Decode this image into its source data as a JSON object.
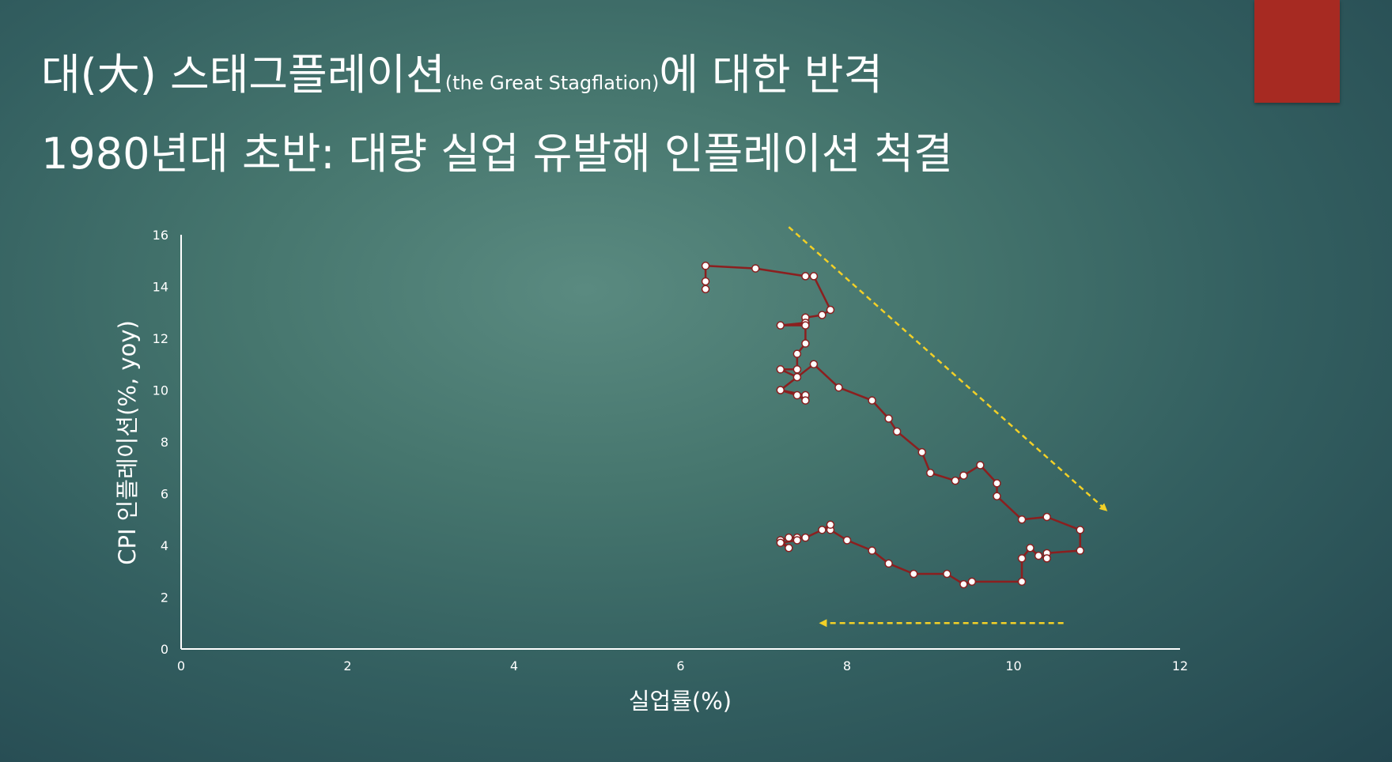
{
  "slide": {
    "title_main": "대(大) 스태그플레이션",
    "title_small": "(the Great Stagflation)",
    "title_end": "에 대한 반격",
    "subtitle": "1980년대 초반: 대량 실업 유발해 인플레이션 척결",
    "accent_color": "#a72a22"
  },
  "chart_data": {
    "type": "scatter",
    "xlabel": "실업률(%)",
    "ylabel": "CPI 인플레이션(%, yoy)",
    "xlim": [
      0,
      12
    ],
    "ylim": [
      0,
      16
    ],
    "x_ticks": [
      "0",
      "2",
      "4",
      "6",
      "8",
      "10",
      "12"
    ],
    "y_ticks": [
      "0",
      "2",
      "4",
      "6",
      "8",
      "10",
      "12",
      "14",
      "16"
    ],
    "grid": false,
    "line_color": "#8b1f1f",
    "marker_color": "#ffffff",
    "arrow_color": "#f2d027",
    "series": [
      {
        "points": [
          [
            6.3,
            13.9
          ],
          [
            6.3,
            14.2
          ],
          [
            6.3,
            14.8
          ],
          [
            6.9,
            14.7
          ],
          [
            7.5,
            14.4
          ],
          [
            7.6,
            14.4
          ],
          [
            7.8,
            13.1
          ],
          [
            7.7,
            12.9
          ],
          [
            7.5,
            12.8
          ],
          [
            7.5,
            12.6
          ],
          [
            7.2,
            12.5
          ],
          [
            7.5,
            12.5
          ],
          [
            7.5,
            11.8
          ],
          [
            7.4,
            11.4
          ],
          [
            7.4,
            10.8
          ],
          [
            7.2,
            10.8
          ],
          [
            7.4,
            10.5
          ],
          [
            7.6,
            11.0
          ],
          [
            7.9,
            10.1
          ],
          [
            8.3,
            9.6
          ],
          [
            8.5,
            8.9
          ],
          [
            8.6,
            8.4
          ],
          [
            8.9,
            7.6
          ],
          [
            9.0,
            6.8
          ],
          [
            9.3,
            6.5
          ],
          [
            9.4,
            6.7
          ],
          [
            9.6,
            7.1
          ],
          [
            9.8,
            6.4
          ],
          [
            9.8,
            5.9
          ],
          [
            10.1,
            5.0
          ],
          [
            10.4,
            5.1
          ],
          [
            10.8,
            4.6
          ],
          [
            10.8,
            3.8
          ],
          [
            10.4,
            3.7
          ],
          [
            10.4,
            3.5
          ],
          [
            10.3,
            3.6
          ],
          [
            10.2,
            3.9
          ],
          [
            10.1,
            3.5
          ],
          [
            10.1,
            2.6
          ],
          [
            9.5,
            2.6
          ],
          [
            9.4,
            2.5
          ],
          [
            9.2,
            2.9
          ],
          [
            8.8,
            2.9
          ],
          [
            8.5,
            3.3
          ],
          [
            8.3,
            3.8
          ],
          [
            8.0,
            4.2
          ],
          [
            7.8,
            4.6
          ],
          [
            7.8,
            4.8
          ],
          [
            7.7,
            4.6
          ],
          [
            7.5,
            4.3
          ],
          [
            7.4,
            4.3
          ],
          [
            7.3,
            4.3
          ],
          [
            7.2,
            4.2
          ],
          [
            7.3,
            3.9
          ],
          [
            7.2,
            4.1
          ],
          [
            7.4,
            4.2
          ]
        ]
      },
      {
        "points": [
          [
            7.2,
            10.0
          ],
          [
            7.5,
            9.8
          ],
          [
            7.5,
            9.6
          ],
          [
            7.4,
            9.8
          ],
          [
            7.2,
            10.0
          ],
          [
            7.4,
            10.5
          ]
        ]
      }
    ],
    "annotations": [
      {
        "type": "arrow",
        "style": "dashed",
        "from": [
          7.3,
          16.3
        ],
        "to": [
          11.1,
          5.4
        ]
      },
      {
        "type": "arrow",
        "style": "dashed",
        "from": [
          10.6,
          1.0
        ],
        "to": [
          7.7,
          1.0
        ]
      }
    ]
  }
}
